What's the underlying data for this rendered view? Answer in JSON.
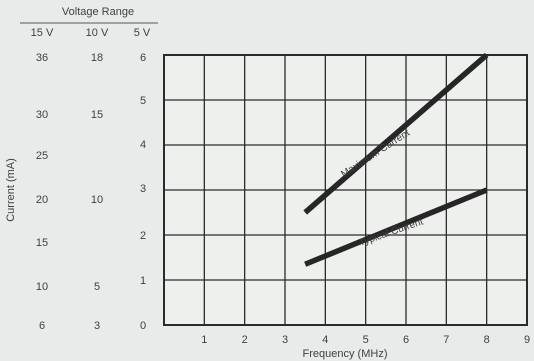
{
  "chart_data": {
    "type": "line",
    "header": "Voltage Range",
    "voltage_columns": [
      {
        "label": "15 V",
        "ticks": [
          "36",
          "30",
          "25",
          "20",
          "15",
          "10",
          "6"
        ]
      },
      {
        "label": "10 V",
        "ticks": [
          "18",
          "15",
          "10",
          "5",
          "3"
        ]
      },
      {
        "label": "5 V",
        "ticks": [
          "6",
          "5",
          "4",
          "3",
          "2",
          "1",
          "0"
        ]
      }
    ],
    "xlabel": "Frequency (MHz)",
    "ylabel": "Current (mA)",
    "x_ticks": [
      "1",
      "2",
      "3",
      "4",
      "5",
      "6",
      "7",
      "8",
      "9"
    ],
    "xlim": [
      0,
      9
    ],
    "ylim": [
      0,
      6
    ],
    "grid": true,
    "series": [
      {
        "name": "Maximum Current",
        "x": [
          3.5,
          8.0
        ],
        "y": [
          2.5,
          6.0
        ]
      },
      {
        "name": "Typical Current",
        "x": [
          3.5,
          8.0
        ],
        "y": [
          1.35,
          3.0
        ]
      }
    ]
  }
}
